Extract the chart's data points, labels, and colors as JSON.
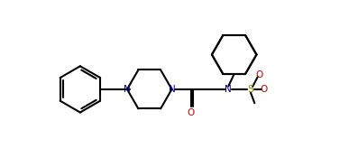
{
  "bg_color": "#ffffff",
  "line_color": "#000000",
  "n_color": "#00008b",
  "o_color": "#cc0000",
  "lw": 1.5,
  "figsize": [
    3.87,
    1.85
  ],
  "dpi": 100,
  "xlim": [
    0.0,
    7.0
  ],
  "ylim": [
    -0.5,
    3.8
  ]
}
